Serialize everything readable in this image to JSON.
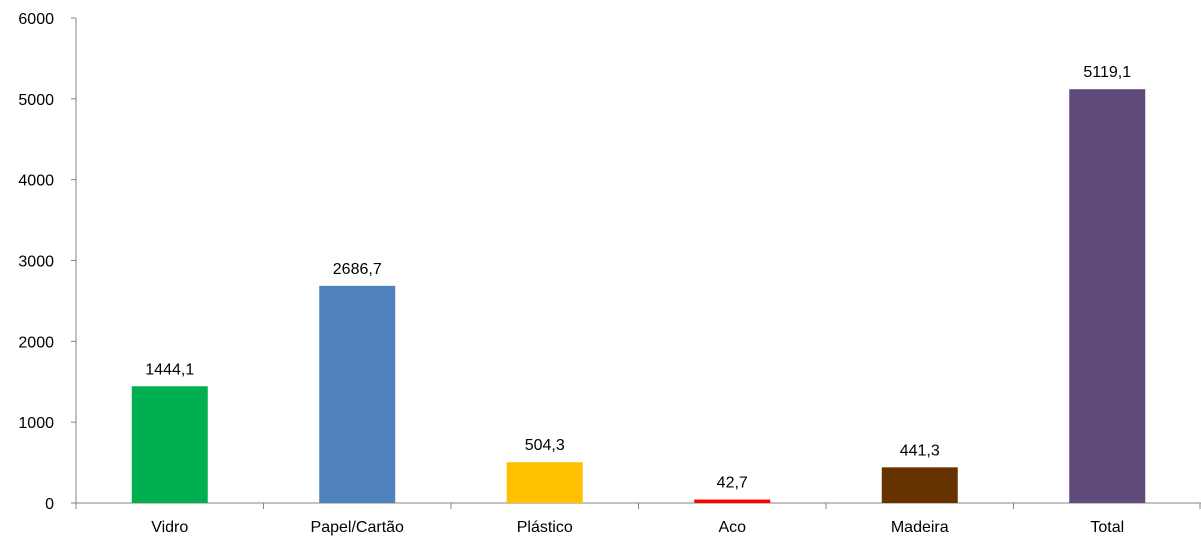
{
  "chart_data": {
    "type": "bar",
    "title": "",
    "xlabel": "",
    "ylabel": "",
    "ylim": [
      0,
      6000
    ],
    "yticks": [
      0,
      1000,
      2000,
      3000,
      4000,
      5000,
      6000
    ],
    "grid": false,
    "legend": "none",
    "categories": [
      "Vidro",
      "Papel/Cartão",
      "Plástico",
      "Aco",
      "Madeira",
      "Total"
    ],
    "values": [
      1444.1,
      2686.7,
      504.3,
      42.7,
      441.3,
      5119.1
    ],
    "data_labels": [
      "1444,1",
      "2686,7",
      "504,3",
      "42,7",
      "441,3",
      "5119,1"
    ],
    "colors": [
      "#00b050",
      "#4f81bd",
      "#ffc000",
      "#ff0000",
      "#663300",
      "#604a7b"
    ]
  }
}
